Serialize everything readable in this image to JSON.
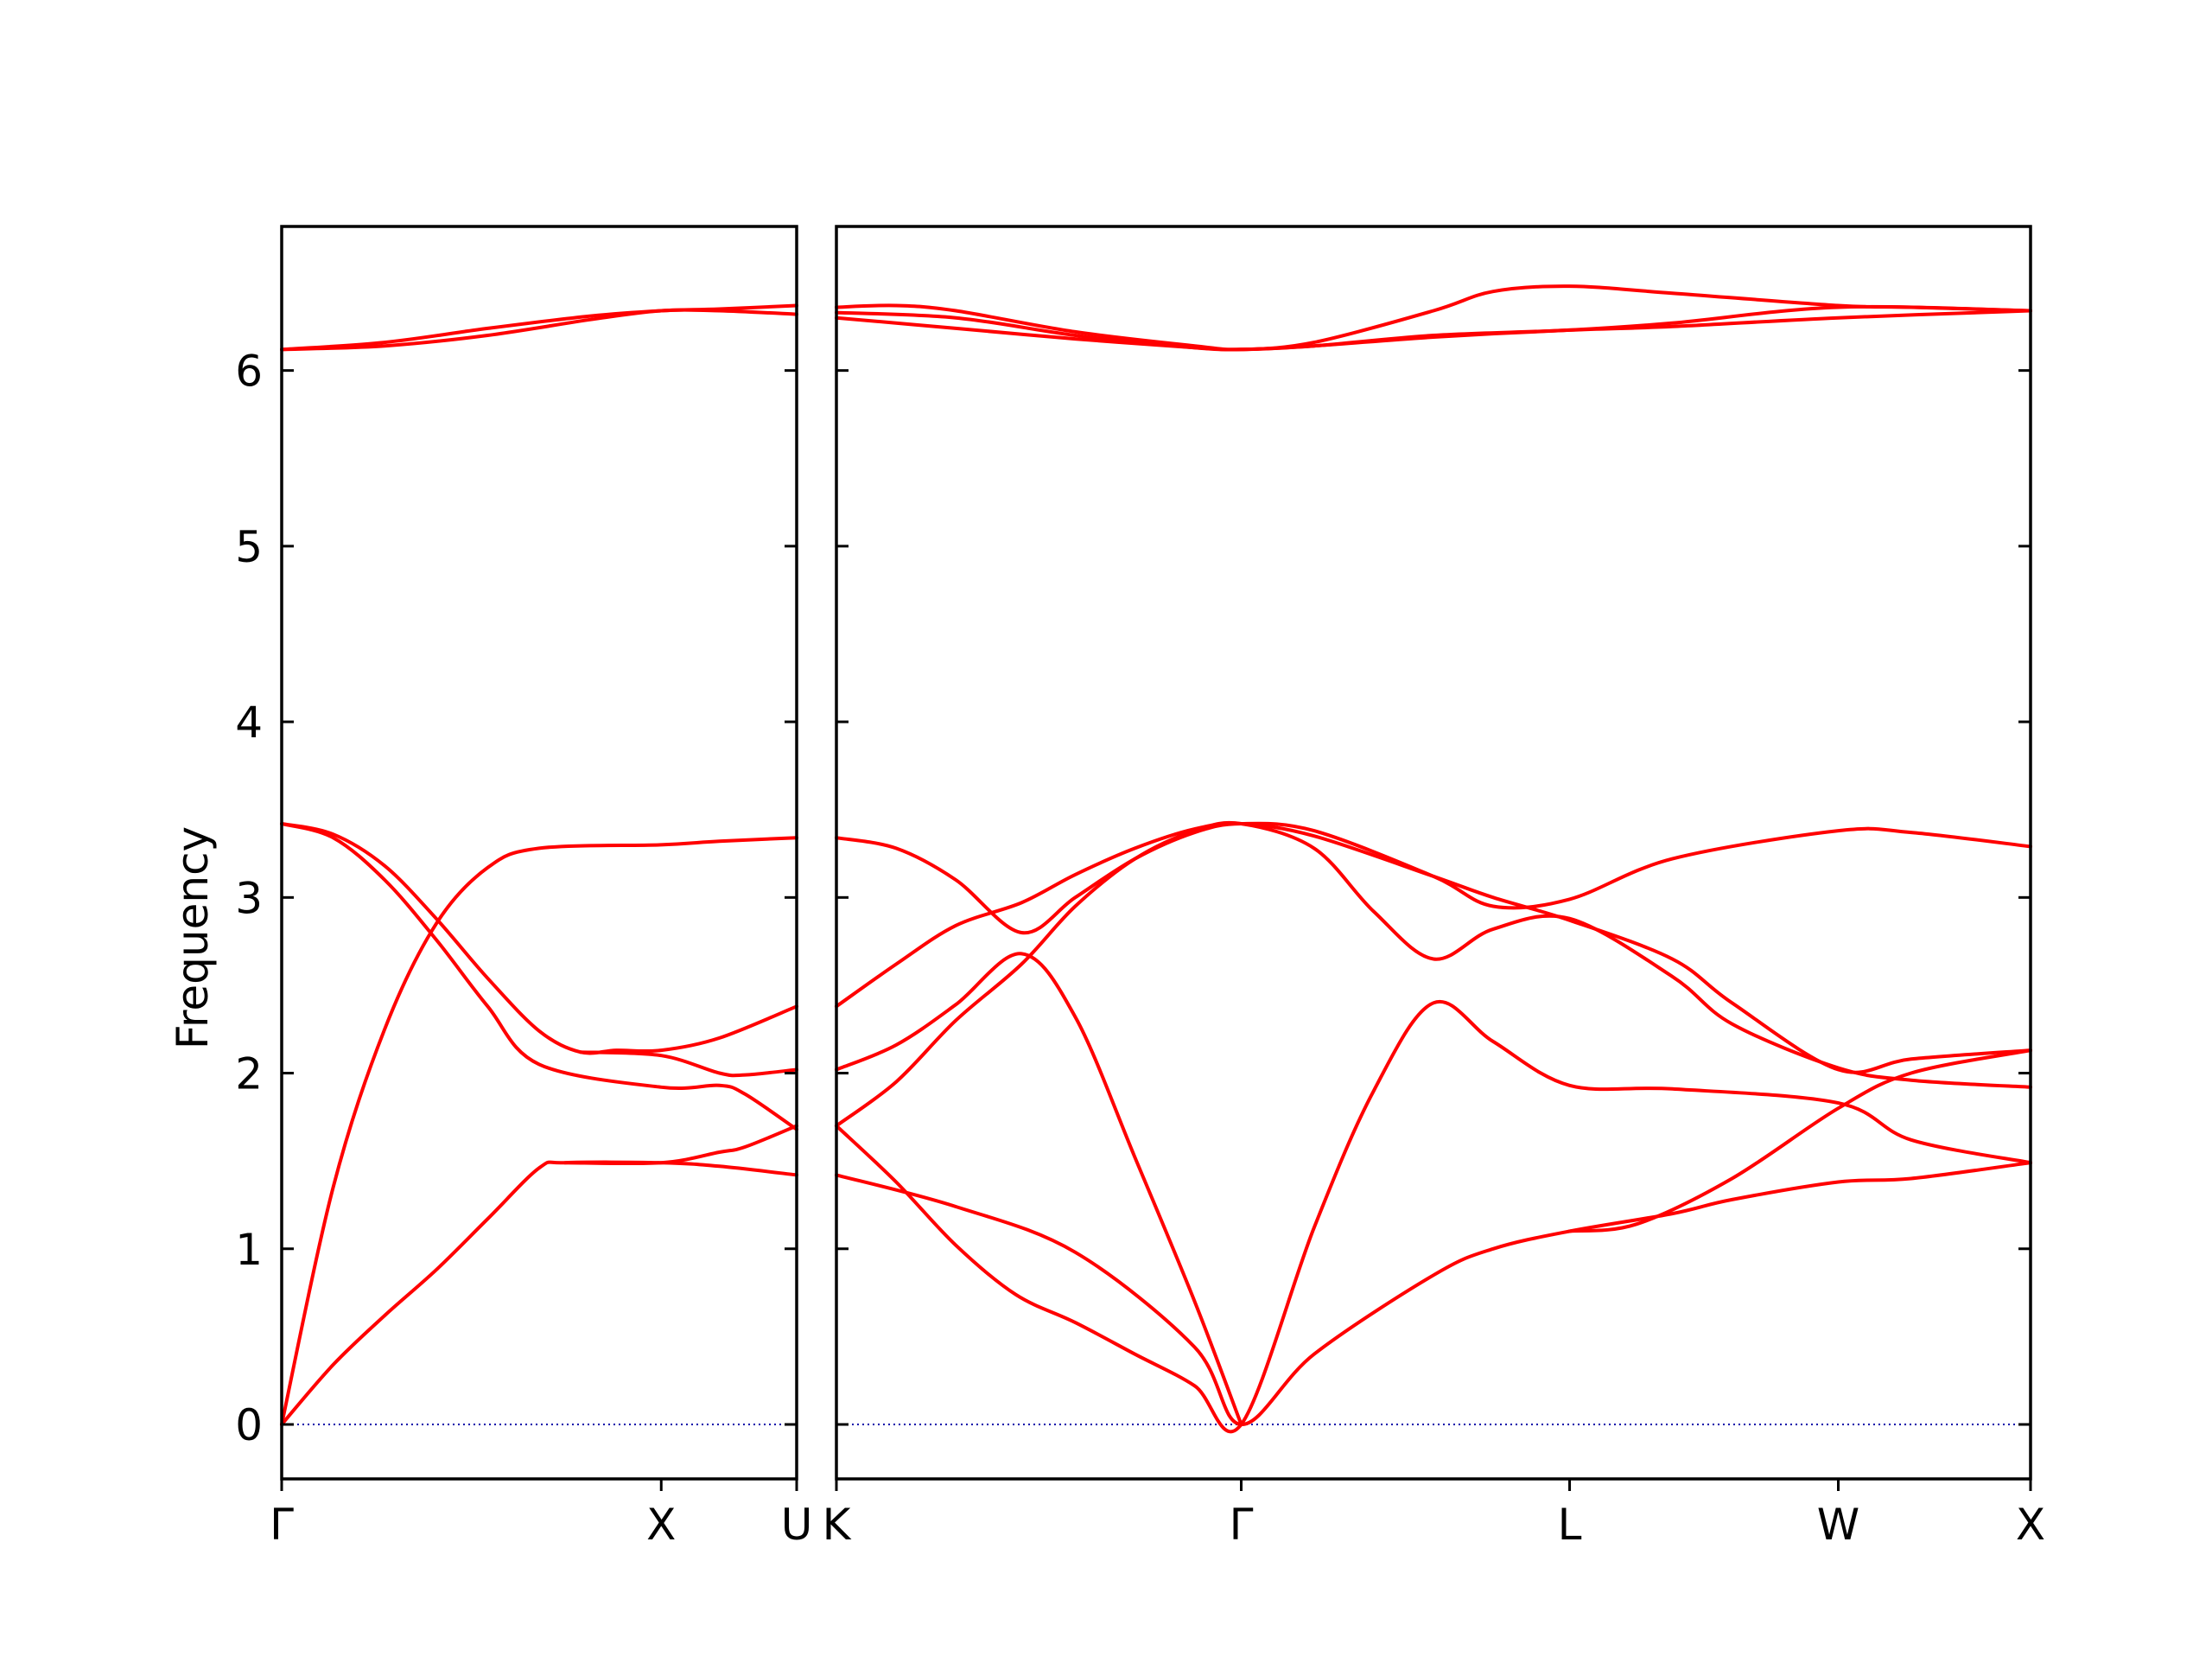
{
  "chart_data": {
    "type": "line",
    "ylabel": "Frequency",
    "ylim": [
      -0.31,
      6.82
    ],
    "yticks": [
      0,
      1,
      2,
      3,
      4,
      5,
      6
    ],
    "grid": false,
    "legend": "none",
    "colors": {
      "band": "#ff0000",
      "zero_line": "#0000aa",
      "axes": "#000000"
    },
    "panels": [
      {
        "xlim": [
          0,
          1.0
        ],
        "ticks": [
          {
            "x": 0.0,
            "label": "Γ"
          },
          {
            "x": 0.737,
            "label": "X"
          },
          {
            "x": 1.0,
            "label": "U"
          }
        ],
        "series": [
          {
            "values": [
              [
                0,
                0
              ],
              [
                0.1,
                0.34
              ],
              [
                0.2,
                0.62
              ],
              [
                0.3,
                0.88
              ],
              [
                0.4,
                1.17
              ],
              [
                0.5,
                1.46
              ],
              [
                0.55,
                1.49
              ],
              [
                0.737,
                1.49
              ],
              [
                0.85,
                1.47
              ],
              [
                1.0,
                1.42
              ]
            ]
          },
          {
            "values": [
              [
                0,
                0
              ],
              [
                0.1,
                1.35
              ],
              [
                0.2,
                2.25
              ],
              [
                0.3,
                2.85
              ],
              [
                0.4,
                3.17
              ],
              [
                0.5,
                3.28
              ],
              [
                0.737,
                3.3
              ],
              [
                0.85,
                3.32
              ],
              [
                1.0,
                3.34
              ]
            ]
          },
          {
            "values": [
              [
                0,
                3.42
              ],
              [
                0.1,
                3.36
              ],
              [
                0.2,
                3.18
              ],
              [
                0.3,
                2.88
              ],
              [
                0.4,
                2.54
              ],
              [
                0.5,
                2.24
              ],
              [
                0.58,
                2.12
              ],
              [
                0.65,
                2.13
              ],
              [
                0.737,
                2.13
              ],
              [
                0.85,
                2.2
              ],
              [
                1.0,
                2.38
              ]
            ]
          },
          {
            "values": [
              [
                0,
                3.42
              ],
              [
                0.1,
                3.34
              ],
              [
                0.2,
                3.1
              ],
              [
                0.3,
                2.76
              ],
              [
                0.4,
                2.38
              ],
              [
                0.5,
                2.05
              ],
              [
                0.737,
                1.92
              ],
              [
                0.85,
                1.93
              ],
              [
                0.9,
                1.88
              ],
              [
                1.0,
                1.68
              ]
            ]
          },
          {
            "values": [
              [
                0.55,
                1.49
              ],
              [
                0.737,
                1.49
              ],
              [
                0.85,
                1.55
              ],
              [
                0.9,
                1.58
              ],
              [
                1.0,
                1.7
              ]
            ]
          },
          {
            "values": [
              [
                0.58,
                2.12
              ],
              [
                0.737,
                2.1
              ],
              [
                0.85,
                2.0
              ],
              [
                0.9,
                1.99
              ],
              [
                1.0,
                2.02
              ]
            ]
          },
          {
            "values": [
              [
                0,
                6.12
              ],
              [
                0.2,
                6.16
              ],
              [
                0.4,
                6.24
              ],
              [
                0.6,
                6.31
              ],
              [
                0.737,
                6.34
              ],
              [
                0.85,
                6.35
              ],
              [
                1.0,
                6.37
              ]
            ]
          },
          {
            "values": [
              [
                0,
                6.12
              ],
              [
                0.2,
                6.14
              ],
              [
                0.4,
                6.2
              ],
              [
                0.6,
                6.29
              ],
              [
                0.737,
                6.34
              ],
              [
                0.85,
                6.34
              ],
              [
                1.0,
                6.32
              ]
            ]
          }
        ]
      },
      {
        "xlim": [
          0,
          1.0
        ],
        "ticks": [
          {
            "x": 0.0,
            "label": "K"
          },
          {
            "x": 0.339,
            "label": "Γ"
          },
          {
            "x": 0.614,
            "label": "L"
          },
          {
            "x": 0.839,
            "label": "W"
          },
          {
            "x": 1.0,
            "label": "X"
          }
        ],
        "series": [
          {
            "values": [
              [
                0,
                1.42
              ],
              [
                0.1,
                1.24
              ],
              [
                0.2,
                0.98
              ],
              [
                0.3,
                0.44
              ],
              [
                0.339,
                0
              ],
              [
                0.4,
                0.4
              ],
              [
                0.5,
                0.85
              ],
              [
                0.55,
                1.0
              ],
              [
                0.614,
                1.1
              ],
              [
                0.7,
                1.2
              ],
              [
                0.75,
                1.28
              ],
              [
                0.839,
                1.38
              ],
              [
                0.9,
                1.4
              ],
              [
                1.0,
                1.49
              ]
            ]
          },
          {
            "values": [
              [
                0,
                1.7
              ],
              [
                0.05,
                1.38
              ],
              [
                0.1,
                1.02
              ],
              [
                0.15,
                0.74
              ],
              [
                0.2,
                0.58
              ],
              [
                0.25,
                0.4
              ],
              [
                0.3,
                0.22
              ],
              [
                0.339,
                0
              ],
              [
                0.4,
                1.12
              ],
              [
                0.45,
                1.9
              ],
              [
                0.5,
                2.4
              ],
              [
                0.55,
                2.18
              ],
              [
                0.614,
                1.93
              ],
              [
                0.7,
                1.91
              ],
              [
                0.839,
                1.83
              ],
              [
                0.9,
                1.62
              ],
              [
                1.0,
                1.49
              ]
            ]
          },
          {
            "values": [
              [
                0,
                2.02
              ],
              [
                0.05,
                2.16
              ],
              [
                0.1,
                2.39
              ],
              [
                0.155,
                2.68
              ],
              [
                0.2,
                2.32
              ],
              [
                0.25,
                1.52
              ],
              [
                0.3,
                0.7
              ],
              [
                0.339,
                0
              ]
            ]
          },
          {
            "values": [
              [
                0,
                1.7
              ],
              [
                0.05,
                1.95
              ],
              [
                0.1,
                2.3
              ],
              [
                0.155,
                2.62
              ],
              [
                0.2,
                2.95
              ],
              [
                0.25,
                3.22
              ],
              [
                0.3,
                3.38
              ],
              [
                0.339,
                3.42
              ],
              [
                0.4,
                3.28
              ],
              [
                0.45,
                2.92
              ],
              [
                0.5,
                2.65
              ],
              [
                0.55,
                2.82
              ],
              [
                0.614,
                2.88
              ],
              [
                0.7,
                2.55
              ],
              [
                0.75,
                2.28
              ],
              [
                0.839,
                2.03
              ],
              [
                0.9,
                1.96
              ],
              [
                1.0,
                1.92
              ]
            ]
          },
          {
            "values": [
              [
                0,
                2.38
              ],
              [
                0.05,
                2.62
              ],
              [
                0.1,
                2.84
              ],
              [
                0.155,
                2.97
              ],
              [
                0.2,
                3.13
              ],
              [
                0.25,
                3.28
              ],
              [
                0.3,
                3.39
              ],
              [
                0.339,
                3.42
              ],
              [
                0.4,
                3.35
              ],
              [
                0.5,
                3.12
              ],
              [
                0.55,
                3.0
              ],
              [
                0.614,
                2.87
              ],
              [
                0.7,
                2.65
              ],
              [
                0.75,
                2.4
              ],
              [
                0.839,
                2.02
              ],
              [
                0.9,
                2.08
              ],
              [
                1.0,
                2.13
              ]
            ]
          },
          {
            "values": [
              [
                0,
                3.34
              ],
              [
                0.05,
                3.28
              ],
              [
                0.1,
                3.1
              ],
              [
                0.155,
                2.8
              ],
              [
                0.2,
                3.0
              ],
              [
                0.25,
                3.22
              ],
              [
                0.3,
                3.37
              ],
              [
                0.339,
                3.42
              ],
              [
                0.4,
                3.38
              ],
              [
                0.5,
                3.12
              ],
              [
                0.55,
                2.95
              ],
              [
                0.614,
                2.99
              ],
              [
                0.7,
                3.22
              ],
              [
                0.839,
                3.38
              ],
              [
                0.9,
                3.37
              ],
              [
                1.0,
                3.29
              ]
            ]
          },
          {
            "values": [
              [
                0.614,
                1.1
              ],
              [
                0.67,
                1.14
              ],
              [
                0.75,
                1.4
              ],
              [
                0.839,
                1.8
              ],
              [
                0.9,
                2.0
              ],
              [
                1.0,
                2.13
              ]
            ]
          },
          {
            "values": [
              [
                0,
                6.36
              ],
              [
                0.05,
                6.37
              ],
              [
                0.1,
                6.34
              ],
              [
                0.2,
                6.22
              ],
              [
                0.3,
                6.14
              ],
              [
                0.339,
                6.12
              ],
              [
                0.4,
                6.16
              ],
              [
                0.5,
                6.34
              ],
              [
                0.55,
                6.45
              ],
              [
                0.614,
                6.48
              ],
              [
                0.7,
                6.44
              ],
              [
                0.839,
                6.37
              ],
              [
                0.9,
                6.36
              ],
              [
                1.0,
                6.34
              ]
            ]
          },
          {
            "values": [
              [
                0,
                6.33
              ],
              [
                0.1,
                6.3
              ],
              [
                0.2,
                6.2
              ],
              [
                0.3,
                6.13
              ],
              [
                0.339,
                6.12
              ],
              [
                0.4,
                6.14
              ],
              [
                0.5,
                6.2
              ],
              [
                0.614,
                6.23
              ],
              [
                0.7,
                6.27
              ],
              [
                0.839,
                6.36
              ],
              [
                1.0,
                6.34
              ]
            ]
          },
          {
            "values": [
              [
                0,
                6.3
              ],
              [
                0.1,
                6.24
              ],
              [
                0.2,
                6.18
              ],
              [
                0.3,
                6.13
              ],
              [
                0.339,
                6.12
              ],
              [
                0.4,
                6.14
              ],
              [
                0.5,
                6.19
              ],
              [
                0.614,
                6.23
              ],
              [
                0.7,
                6.25
              ],
              [
                0.839,
                6.3
              ],
              [
                1.0,
                6.34
              ]
            ]
          }
        ]
      }
    ]
  }
}
